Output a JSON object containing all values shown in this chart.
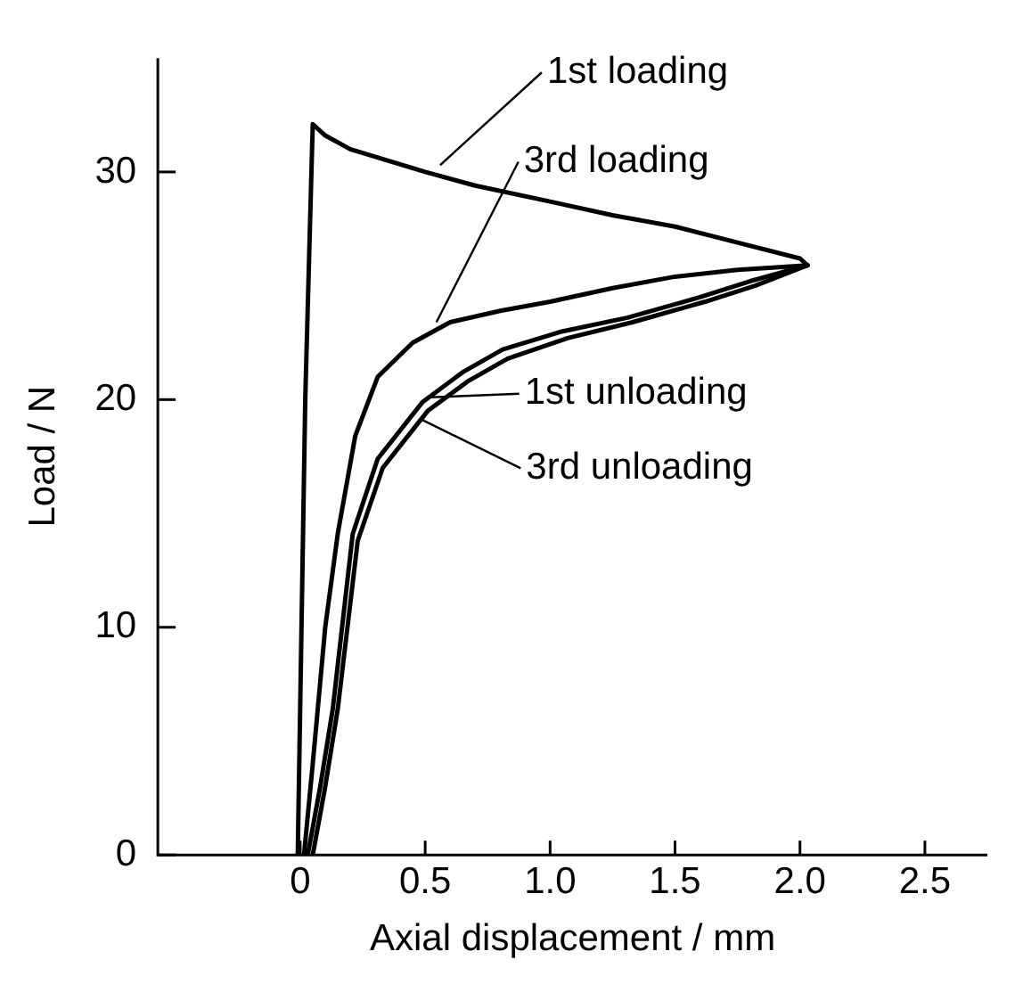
{
  "chart_data": {
    "type": "line",
    "xlabel": "Axial displacement / mm",
    "ylabel": "Load / N",
    "xlim": [
      -0.57,
      2.75
    ],
    "xticks": [
      0,
      0.5,
      {
        "value": 1,
        "label": "1.0"
      },
      1.5,
      {
        "value": 2,
        "label": "2.0"
      },
      2.5
    ],
    "ylim": [
      0,
      35
    ],
    "yticks": [
      0,
      10,
      20,
      30
    ],
    "grid": false,
    "legend": false,
    "marker": "none",
    "line_style": "solid",
    "series": [
      {
        "color": "#000000",
        "x": [
          -0.01,
          0.02,
          0.05,
          0.1,
          0.2,
          0.35,
          0.5,
          0.7,
          1.0,
          1.25,
          1.5,
          1.75,
          2.0,
          2.03
        ],
        "values": [
          0,
          20,
          32.1,
          31.6,
          31,
          30.5,
          30,
          29.4,
          28.7,
          28.1,
          27.6,
          26.9,
          26.2,
          25.9
        ]
      },
      {
        "color": "#000000",
        "x": [
          0.015,
          0.05,
          0.07,
          0.1,
          0.15,
          0.22,
          0.31,
          0.45,
          0.6,
          0.8,
          1.0,
          1.25,
          1.5,
          1.75,
          2.03
        ],
        "values": [
          0,
          4,
          6.4,
          10,
          14.1,
          18.4,
          21,
          22.5,
          23.4,
          23.9,
          24.3,
          24.9,
          25.4,
          25.7,
          25.9
        ]
      },
      {
        "color": "#000000",
        "x": [
          0.03,
          0.08,
          0.13,
          0.21,
          0.31,
          0.49,
          0.65,
          0.81,
          1.05,
          1.31,
          1.6,
          1.8,
          2.03
        ],
        "values": [
          0,
          3,
          6.4,
          14.1,
          17.4,
          19.9,
          21.2,
          22.2,
          23,
          23.6,
          24.5,
          25.2,
          25.9
        ]
      },
      {
        "color": "#000000",
        "x": [
          0.05,
          0.1,
          0.15,
          0.23,
          0.33,
          0.51,
          0.67,
          0.83,
          1.07,
          1.33,
          1.62,
          1.82,
          2.03
        ],
        "values": [
          0,
          3,
          6.4,
          13.8,
          17,
          19.5,
          20.8,
          21.8,
          22.7,
          23.4,
          24.3,
          25,
          25.9
        ]
      }
    ],
    "annotations": [
      {
        "text": "1st loading",
        "x": 0.56,
        "y": 30.3
      },
      {
        "text": "3rd loading",
        "x": 0.545,
        "y": 23.4
      },
      {
        "text": "1st unloading",
        "x": 0.52,
        "y": 20.1
      },
      {
        "text": "3rd unloading",
        "x": 0.49,
        "y": 19.1
      }
    ]
  }
}
